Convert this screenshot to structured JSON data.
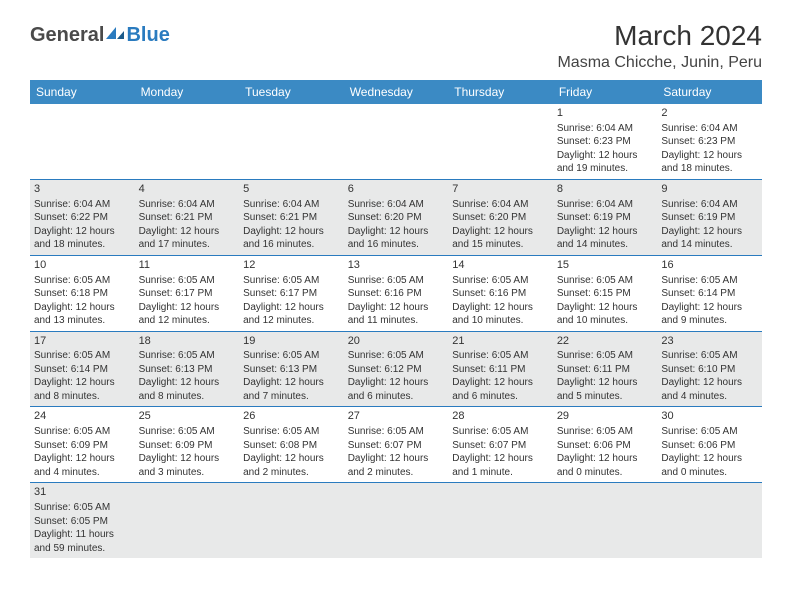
{
  "logo": {
    "part1": "General",
    "part2": "Blue"
  },
  "title": "March 2024",
  "location": "Masma Chicche, Junin, Peru",
  "colors": {
    "header_bg": "#3b8ac4",
    "header_text": "#ffffff",
    "row_shade": "#e8e9e9",
    "border": "#2a7bbf",
    "logo_gray": "#4a4a4a",
    "logo_blue": "#2a7bbf"
  },
  "weekdays": [
    "Sunday",
    "Monday",
    "Tuesday",
    "Wednesday",
    "Thursday",
    "Friday",
    "Saturday"
  ],
  "grid": [
    [
      null,
      null,
      null,
      null,
      null,
      {
        "n": "1",
        "sr": "Sunrise: 6:04 AM",
        "ss": "Sunset: 6:23 PM",
        "dl1": "Daylight: 12 hours",
        "dl2": "and 19 minutes."
      },
      {
        "n": "2",
        "sr": "Sunrise: 6:04 AM",
        "ss": "Sunset: 6:23 PM",
        "dl1": "Daylight: 12 hours",
        "dl2": "and 18 minutes."
      }
    ],
    [
      {
        "n": "3",
        "sr": "Sunrise: 6:04 AM",
        "ss": "Sunset: 6:22 PM",
        "dl1": "Daylight: 12 hours",
        "dl2": "and 18 minutes."
      },
      {
        "n": "4",
        "sr": "Sunrise: 6:04 AM",
        "ss": "Sunset: 6:21 PM",
        "dl1": "Daylight: 12 hours",
        "dl2": "and 17 minutes."
      },
      {
        "n": "5",
        "sr": "Sunrise: 6:04 AM",
        "ss": "Sunset: 6:21 PM",
        "dl1": "Daylight: 12 hours",
        "dl2": "and 16 minutes."
      },
      {
        "n": "6",
        "sr": "Sunrise: 6:04 AM",
        "ss": "Sunset: 6:20 PM",
        "dl1": "Daylight: 12 hours",
        "dl2": "and 16 minutes."
      },
      {
        "n": "7",
        "sr": "Sunrise: 6:04 AM",
        "ss": "Sunset: 6:20 PM",
        "dl1": "Daylight: 12 hours",
        "dl2": "and 15 minutes."
      },
      {
        "n": "8",
        "sr": "Sunrise: 6:04 AM",
        "ss": "Sunset: 6:19 PM",
        "dl1": "Daylight: 12 hours",
        "dl2": "and 14 minutes."
      },
      {
        "n": "9",
        "sr": "Sunrise: 6:04 AM",
        "ss": "Sunset: 6:19 PM",
        "dl1": "Daylight: 12 hours",
        "dl2": "and 14 minutes."
      }
    ],
    [
      {
        "n": "10",
        "sr": "Sunrise: 6:05 AM",
        "ss": "Sunset: 6:18 PM",
        "dl1": "Daylight: 12 hours",
        "dl2": "and 13 minutes."
      },
      {
        "n": "11",
        "sr": "Sunrise: 6:05 AM",
        "ss": "Sunset: 6:17 PM",
        "dl1": "Daylight: 12 hours",
        "dl2": "and 12 minutes."
      },
      {
        "n": "12",
        "sr": "Sunrise: 6:05 AM",
        "ss": "Sunset: 6:17 PM",
        "dl1": "Daylight: 12 hours",
        "dl2": "and 12 minutes."
      },
      {
        "n": "13",
        "sr": "Sunrise: 6:05 AM",
        "ss": "Sunset: 6:16 PM",
        "dl1": "Daylight: 12 hours",
        "dl2": "and 11 minutes."
      },
      {
        "n": "14",
        "sr": "Sunrise: 6:05 AM",
        "ss": "Sunset: 6:16 PM",
        "dl1": "Daylight: 12 hours",
        "dl2": "and 10 minutes."
      },
      {
        "n": "15",
        "sr": "Sunrise: 6:05 AM",
        "ss": "Sunset: 6:15 PM",
        "dl1": "Daylight: 12 hours",
        "dl2": "and 10 minutes."
      },
      {
        "n": "16",
        "sr": "Sunrise: 6:05 AM",
        "ss": "Sunset: 6:14 PM",
        "dl1": "Daylight: 12 hours",
        "dl2": "and 9 minutes."
      }
    ],
    [
      {
        "n": "17",
        "sr": "Sunrise: 6:05 AM",
        "ss": "Sunset: 6:14 PM",
        "dl1": "Daylight: 12 hours",
        "dl2": "and 8 minutes."
      },
      {
        "n": "18",
        "sr": "Sunrise: 6:05 AM",
        "ss": "Sunset: 6:13 PM",
        "dl1": "Daylight: 12 hours",
        "dl2": "and 8 minutes."
      },
      {
        "n": "19",
        "sr": "Sunrise: 6:05 AM",
        "ss": "Sunset: 6:13 PM",
        "dl1": "Daylight: 12 hours",
        "dl2": "and 7 minutes."
      },
      {
        "n": "20",
        "sr": "Sunrise: 6:05 AM",
        "ss": "Sunset: 6:12 PM",
        "dl1": "Daylight: 12 hours",
        "dl2": "and 6 minutes."
      },
      {
        "n": "21",
        "sr": "Sunrise: 6:05 AM",
        "ss": "Sunset: 6:11 PM",
        "dl1": "Daylight: 12 hours",
        "dl2": "and 6 minutes."
      },
      {
        "n": "22",
        "sr": "Sunrise: 6:05 AM",
        "ss": "Sunset: 6:11 PM",
        "dl1": "Daylight: 12 hours",
        "dl2": "and 5 minutes."
      },
      {
        "n": "23",
        "sr": "Sunrise: 6:05 AM",
        "ss": "Sunset: 6:10 PM",
        "dl1": "Daylight: 12 hours",
        "dl2": "and 4 minutes."
      }
    ],
    [
      {
        "n": "24",
        "sr": "Sunrise: 6:05 AM",
        "ss": "Sunset: 6:09 PM",
        "dl1": "Daylight: 12 hours",
        "dl2": "and 4 minutes."
      },
      {
        "n": "25",
        "sr": "Sunrise: 6:05 AM",
        "ss": "Sunset: 6:09 PM",
        "dl1": "Daylight: 12 hours",
        "dl2": "and 3 minutes."
      },
      {
        "n": "26",
        "sr": "Sunrise: 6:05 AM",
        "ss": "Sunset: 6:08 PM",
        "dl1": "Daylight: 12 hours",
        "dl2": "and 2 minutes."
      },
      {
        "n": "27",
        "sr": "Sunrise: 6:05 AM",
        "ss": "Sunset: 6:07 PM",
        "dl1": "Daylight: 12 hours",
        "dl2": "and 2 minutes."
      },
      {
        "n": "28",
        "sr": "Sunrise: 6:05 AM",
        "ss": "Sunset: 6:07 PM",
        "dl1": "Daylight: 12 hours",
        "dl2": "and 1 minute."
      },
      {
        "n": "29",
        "sr": "Sunrise: 6:05 AM",
        "ss": "Sunset: 6:06 PM",
        "dl1": "Daylight: 12 hours",
        "dl2": "and 0 minutes."
      },
      {
        "n": "30",
        "sr": "Sunrise: 6:05 AM",
        "ss": "Sunset: 6:06 PM",
        "dl1": "Daylight: 12 hours",
        "dl2": "and 0 minutes."
      }
    ],
    [
      {
        "n": "31",
        "sr": "Sunrise: 6:05 AM",
        "ss": "Sunset: 6:05 PM",
        "dl1": "Daylight: 11 hours",
        "dl2": "and 59 minutes."
      },
      null,
      null,
      null,
      null,
      null,
      null
    ]
  ]
}
